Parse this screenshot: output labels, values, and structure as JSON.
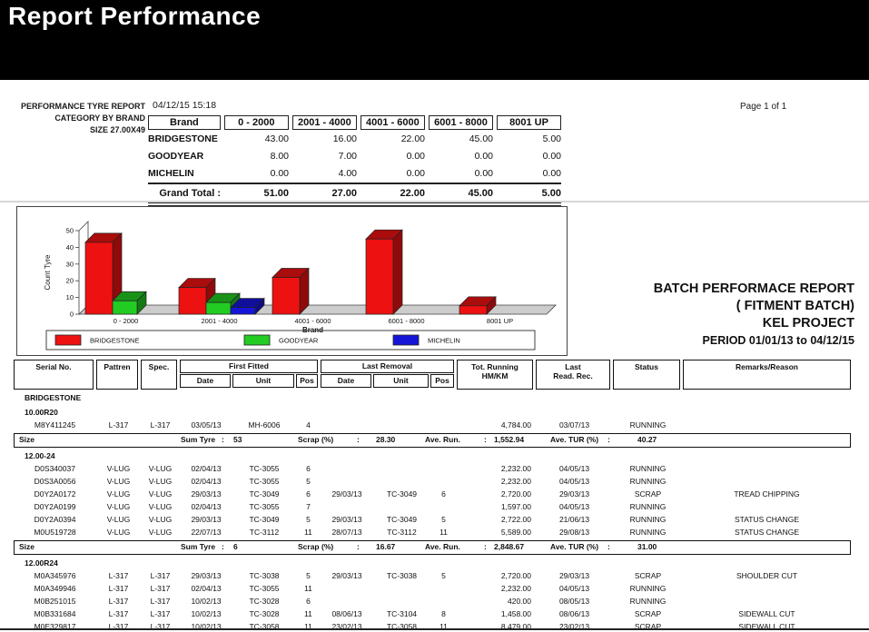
{
  "window": {
    "title": "Report Performance"
  },
  "report": {
    "title_lines": [
      "PERFORMANCE TYRE REPORT",
      "CATEGORY BY BRAND",
      "SIZE 27.00X49"
    ],
    "datetime": "04/12/15 15:18",
    "page": "Page 1 of 1"
  },
  "brand_table": {
    "headers": [
      "Brand",
      "0 - 2000",
      "2001 - 4000",
      "4001 - 6000",
      "6001 - 8000",
      "8001 UP"
    ],
    "rows": [
      {
        "brand": "BRIDGESTONE",
        "values": [
          "43.00",
          "16.00",
          "22.00",
          "45.00",
          "5.00"
        ]
      },
      {
        "brand": "GOODYEAR",
        "values": [
          "8.00",
          "7.00",
          "0.00",
          "0.00",
          "0.00"
        ]
      },
      {
        "brand": "MICHELIN",
        "values": [
          "0.00",
          "4.00",
          "0.00",
          "0.00",
          "0.00"
        ]
      }
    ],
    "grand_total_label": "Grand Total :",
    "grand_total": [
      "51.00",
      "27.00",
      "22.00",
      "45.00",
      "5.00"
    ]
  },
  "chart_data": {
    "type": "bar",
    "categories": [
      "0 - 2000",
      "2001 - 4000",
      "4001 - 6000",
      "6001 - 8000",
      "8001 UP"
    ],
    "series": [
      {
        "name": "BRIDGESTONE",
        "color": "#ee1111",
        "values": [
          43,
          16,
          22,
          45,
          5
        ]
      },
      {
        "name": "GOODYEAR",
        "color": "#22cc22",
        "values": [
          8,
          7,
          0,
          0,
          0
        ]
      },
      {
        "name": "MICHELIN",
        "color": "#1515d8",
        "values": [
          0,
          4,
          0,
          0,
          0
        ]
      }
    ],
    "xlabel": "Brand",
    "ylabel": "Count Tyre",
    "ylim": [
      0,
      50
    ],
    "yticks": [
      0,
      10,
      20,
      30,
      40,
      50
    ],
    "grid": false,
    "legend_position": "bottom"
  },
  "batch_block": {
    "lines": [
      "BATCH PERFORMACE REPORT",
      "( FITMENT BATCH)",
      "KEL PROJECT"
    ],
    "period": "PERIOD 01/01/13 to 04/12/15"
  },
  "detail_table": {
    "headers": {
      "serial": "Serial No.",
      "pattren": "Pattren",
      "spec": "Spec.",
      "first_fitted": "First Fitted",
      "last_removal": "Last Removal",
      "sub": [
        "Date",
        "Unit",
        "Pos"
      ],
      "tot_running_1": "Tot. Running",
      "tot_running_2": "HM/KM",
      "last_read_1": "Last",
      "last_read_2": "Read. Rec.",
      "status": "Status",
      "remarks": "Remarks/Reason"
    },
    "summary_labels": {
      "size": "Size",
      "sum_tyre": "Sum Tyre",
      "scrap": "Scrap (%)",
      "ave_run": "Ave. Run.",
      "ave_tur": "Ave. TUR (%)",
      "colon": ":"
    },
    "brand_group": "BRIDGESTONE",
    "size_groups": [
      {
        "size": "10.00R20",
        "rows": [
          [
            "M8Y411245",
            "L-317",
            "L-317",
            "03/05/13",
            "MH-6006",
            "4",
            "",
            "",
            "",
            "4,784.00",
            "03/07/13",
            "RUNNING",
            ""
          ]
        ],
        "summary": {
          "sum_tyre": "53",
          "scrap": "28.30",
          "ave_run": "1,552.94",
          "ave_tur": "40.27"
        }
      },
      {
        "size": "12.00-24",
        "rows": [
          [
            "D0S340037",
            "V-LUG",
            "V-LUG",
            "02/04/13",
            "TC-3055",
            "6",
            "",
            "",
            "",
            "2,232.00",
            "04/05/13",
            "RUNNING",
            ""
          ],
          [
            "D0S3A0056",
            "V-LUG",
            "V-LUG",
            "02/04/13",
            "TC-3055",
            "5",
            "",
            "",
            "",
            "2,232.00",
            "04/05/13",
            "RUNNING",
            ""
          ],
          [
            "D0Y2A0172",
            "V-LUG",
            "V-LUG",
            "29/03/13",
            "TC-3049",
            "6",
            "29/03/13",
            "TC-3049",
            "6",
            "2,720.00",
            "29/03/13",
            "SCRAP",
            "TREAD CHIPPING"
          ],
          [
            "D0Y2A0199",
            "V-LUG",
            "V-LUG",
            "02/04/13",
            "TC-3055",
            "7",
            "",
            "",
            "",
            "1,597.00",
            "04/05/13",
            "RUNNING",
            ""
          ],
          [
            "D0Y2A0394",
            "V-LUG",
            "V-LUG",
            "29/03/13",
            "TC-3049",
            "5",
            "29/03/13",
            "TC-3049",
            "5",
            "2,722.00",
            "21/06/13",
            "RUNNING",
            "STATUS CHANGE"
          ],
          [
            "M0U519728",
            "V-LUG",
            "V-LUG",
            "22/07/13",
            "TC-3112",
            "11",
            "28/07/13",
            "TC-3112",
            "11",
            "5,589.00",
            "29/08/13",
            "RUNNING",
            "STATUS CHANGE"
          ]
        ],
        "summary": {
          "sum_tyre": "6",
          "scrap": "16.67",
          "ave_run": "2,848.67",
          "ave_tur": "31.00"
        }
      },
      {
        "size": "12.00R24",
        "rows": [
          [
            "M0A345976",
            "L-317",
            "L-317",
            "29/03/13",
            "TC-3038",
            "5",
            "29/03/13",
            "TC-3038",
            "5",
            "2,720.00",
            "29/03/13",
            "SCRAP",
            "SHOULDER CUT"
          ],
          [
            "M0A349946",
            "L-317",
            "L-317",
            "02/04/13",
            "TC-3055",
            "11",
            "",
            "",
            "",
            "2,232.00",
            "04/05/13",
            "RUNNING",
            ""
          ],
          [
            "M0B251015",
            "L-317",
            "L-317",
            "10/02/13",
            "TC-3028",
            "6",
            "",
            "",
            "",
            "420.00",
            "08/05/13",
            "RUNNING",
            ""
          ],
          [
            "M0B331684",
            "L-317",
            "L-317",
            "10/02/13",
            "TC-3028",
            "11",
            "08/06/13",
            "TC-3104",
            "8",
            "1,458.00",
            "08/06/13",
            "SCRAP",
            "SIDEWALL CUT"
          ],
          [
            "M0E329817",
            "L-317",
            "L-317",
            "10/02/13",
            "TC-3058",
            "11",
            "23/02/13",
            "TC-3058",
            "11",
            "8,479.00",
            "23/02/13",
            "SCRAP",
            "SIDEWALL CUT"
          ]
        ],
        "summary": null
      }
    ]
  }
}
